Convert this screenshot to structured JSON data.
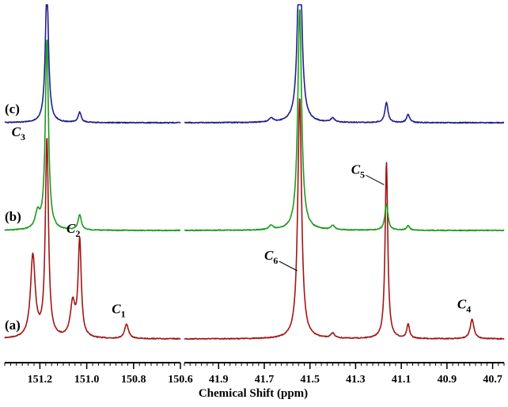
{
  "chart_data": {
    "type": "line",
    "title": "",
    "xlabel": "Chemical Shift (ppm)",
    "ylabel": "",
    "grid": false,
    "axis_break": true,
    "x_reversed": true,
    "panels": [
      {
        "name": "left",
        "xlim": [
          151.35,
          150.6
        ],
        "ticks": [
          "151.2",
          "151.0",
          "150.8",
          "150.6"
        ],
        "tick_values": [
          151.2,
          151.0,
          150.8,
          150.6
        ]
      },
      {
        "name": "right",
        "xlim": [
          42.05,
          40.65
        ],
        "ticks": [
          "41.9",
          "41.7",
          "41.5",
          "41.3",
          "41.1",
          "40.9",
          "40.7"
        ],
        "tick_values": [
          41.9,
          41.7,
          41.5,
          41.3,
          41.1,
          40.9,
          40.7
        ]
      }
    ],
    "series": [
      {
        "name": "(a)",
        "color": "#a31515",
        "baseline": 0.0,
        "peaks": [
          {
            "x": 151.23,
            "height": 0.34,
            "width": 0.012
          },
          {
            "x": 151.17,
            "height": 0.82,
            "width": 0.008
          },
          {
            "x": 151.06,
            "height": 0.14,
            "width": 0.012
          },
          {
            "x": 151.03,
            "height": 0.4,
            "width": 0.008
          },
          {
            "x": 150.83,
            "height": 0.06,
            "width": 0.01
          },
          {
            "x": 41.545,
            "height": 1.0,
            "width": 0.01
          },
          {
            "x": 41.4,
            "height": 0.02,
            "width": 0.01
          },
          {
            "x": 41.165,
            "height": 0.73,
            "width": 0.007
          },
          {
            "x": 41.07,
            "height": 0.06,
            "width": 0.007
          },
          {
            "x": 40.79,
            "height": 0.08,
            "width": 0.01
          }
        ]
      },
      {
        "name": "(b)",
        "color": "#1e9a1e",
        "baseline": 0.0,
        "peaks": [
          {
            "x": 151.21,
            "height": 0.07,
            "width": 0.012
          },
          {
            "x": 151.17,
            "height": 0.86,
            "width": 0.008
          },
          {
            "x": 151.03,
            "height": 0.07,
            "width": 0.008
          },
          {
            "x": 41.545,
            "height": 1.0,
            "width": 0.01
          },
          {
            "x": 41.67,
            "height": 0.02,
            "width": 0.01
          },
          {
            "x": 41.4,
            "height": 0.02,
            "width": 0.01
          },
          {
            "x": 41.165,
            "height": 0.12,
            "width": 0.008
          },
          {
            "x": 41.07,
            "height": 0.02,
            "width": 0.008
          }
        ]
      },
      {
        "name": "(c)",
        "color": "#1f1f8f",
        "baseline": 0.0,
        "peaks": [
          {
            "x": 151.17,
            "height": 0.67,
            "width": 0.008
          },
          {
            "x": 151.03,
            "height": 0.05,
            "width": 0.008
          },
          {
            "x": 41.545,
            "height": 1.0,
            "width": 0.01
          },
          {
            "x": 41.67,
            "height": 0.02,
            "width": 0.01
          },
          {
            "x": 41.4,
            "height": 0.02,
            "width": 0.01
          },
          {
            "x": 41.165,
            "height": 0.1,
            "width": 0.008
          },
          {
            "x": 41.07,
            "height": 0.04,
            "width": 0.008
          }
        ]
      }
    ],
    "annotations": [
      {
        "letter": "C",
        "sub": "1",
        "series": "(a)",
        "x": 150.83
      },
      {
        "letter": "C",
        "sub": "2",
        "series": "(a)",
        "x": 151.03
      },
      {
        "letter": "C",
        "sub": "3",
        "series": "(a)",
        "x": 151.17
      },
      {
        "letter": "C",
        "sub": "4",
        "series": "(a)",
        "x": 40.79
      },
      {
        "letter": "C",
        "sub": "5",
        "series": "(a)",
        "x": 41.165
      },
      {
        "letter": "C",
        "sub": "6",
        "series": "(a)",
        "x": 41.545
      }
    ]
  }
}
